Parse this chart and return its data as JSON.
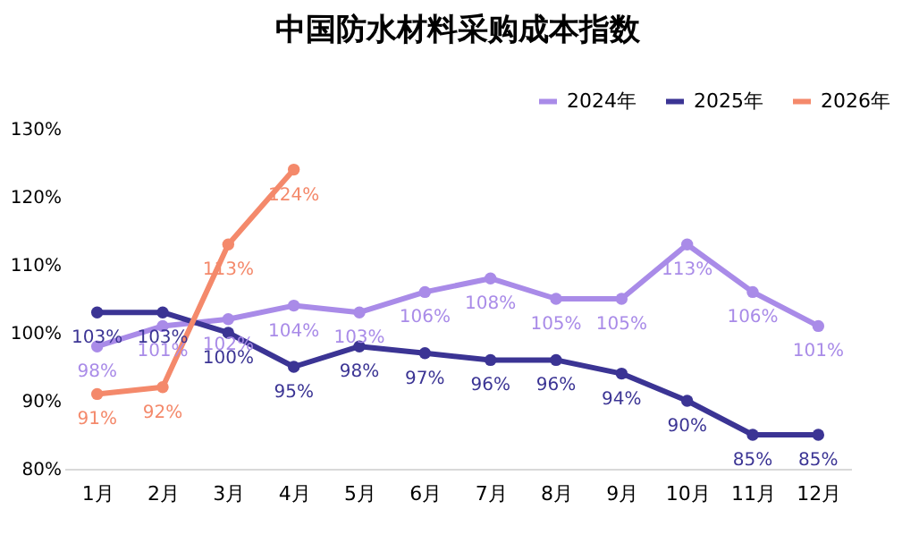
{
  "chart_data": {
    "type": "line",
    "title": "中国防水材料采购成本指数",
    "categories": [
      "1月",
      "2月",
      "3月",
      "4月",
      "5月",
      "6月",
      "7月",
      "8月",
      "9月",
      "10月",
      "11月",
      "12月"
    ],
    "series": [
      {
        "name": "2024年",
        "color": "#a98be8",
        "values": [
          98,
          101,
          102,
          104,
          103,
          106,
          108,
          105,
          105,
          113,
          106,
          101
        ],
        "value_labels": [
          "98%",
          "101%",
          "102%",
          "104%",
          "103%",
          "106%",
          "108%",
          "105%",
          "105%",
          "113%",
          "106%",
          "101%"
        ]
      },
      {
        "name": "2025年",
        "color": "#3b3494",
        "values": [
          103,
          103,
          100,
          95,
          98,
          97,
          96,
          96,
          94,
          90,
          85,
          85
        ],
        "value_labels": [
          "103%",
          "103%",
          "100%",
          "95%",
          "98%",
          "97%",
          "96%",
          "96%",
          "94%",
          "90%",
          "85%",
          "85%"
        ]
      },
      {
        "name": "2026年",
        "color": "#f4896b",
        "values": [
          91,
          92,
          113,
          124,
          null,
          null,
          null,
          null,
          null,
          null,
          null,
          null
        ],
        "value_labels": [
          "91%",
          "92%",
          "113%",
          "124%",
          null,
          null,
          null,
          null,
          null,
          null,
          null,
          null
        ]
      }
    ],
    "ylim": [
      80,
      130
    ],
    "yticks": [
      {
        "value": 80,
        "label": "80%"
      },
      {
        "value": 90,
        "label": "90%"
      },
      {
        "value": 100,
        "label": "100%"
      },
      {
        "value": 110,
        "label": "110%"
      },
      {
        "value": 120,
        "label": "120%"
      },
      {
        "value": 130,
        "label": "130%"
      }
    ],
    "grid": false,
    "legend": "top right",
    "marker": "circle",
    "line_style": "solid"
  }
}
